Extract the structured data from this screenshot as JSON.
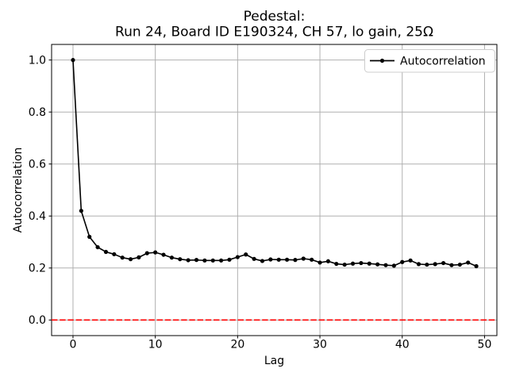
{
  "chart_data": {
    "type": "line",
    "title_lines": [
      "Pedestal:",
      "Run 24, Board ID E190324, CH 57, lo gain, 25Ω"
    ],
    "title": "Pedestal:\nRun 24, Board ID E190324, CH 57, lo gain, 25Ω",
    "xlabel": "Lag",
    "ylabel": "Autocorrelation",
    "grid": true,
    "legend": {
      "position": "upper right",
      "entries": [
        {
          "label": "Autocorrelation",
          "color": "#000000",
          "marker": "point"
        }
      ]
    },
    "xlim": [
      -2.6,
      51.5
    ],
    "ylim": [
      -0.06,
      1.06
    ],
    "xticks": {
      "values": [
        0,
        10,
        20,
        30,
        40,
        50
      ],
      "labels": [
        "0",
        "10",
        "20",
        "30",
        "40",
        "50"
      ]
    },
    "yticks": {
      "values": [
        0.0,
        0.2,
        0.4,
        0.6,
        0.8,
        1.0
      ],
      "labels": [
        "0.0",
        "0.2",
        "0.4",
        "0.6",
        "0.8",
        "1.0"
      ]
    },
    "series": [
      {
        "name": "Autocorrelation",
        "color": "#000000",
        "marker": "point",
        "line_width": 1.6,
        "x": [
          0,
          1,
          2,
          3,
          4,
          5,
          6,
          7,
          8,
          9,
          10,
          11,
          12,
          13,
          14,
          15,
          16,
          17,
          18,
          19,
          20,
          21,
          22,
          23,
          24,
          25,
          26,
          27,
          28,
          29,
          30,
          31,
          32,
          33,
          34,
          35,
          36,
          37,
          38,
          39,
          40,
          41,
          42,
          43,
          44,
          45,
          46,
          47,
          48,
          49
        ],
        "y": [
          1.0,
          0.42,
          0.32,
          0.28,
          0.262,
          0.253,
          0.24,
          0.234,
          0.241,
          0.257,
          0.26,
          0.251,
          0.24,
          0.234,
          0.23,
          0.231,
          0.229,
          0.229,
          0.229,
          0.232,
          0.242,
          0.252,
          0.235,
          0.227,
          0.233,
          0.232,
          0.232,
          0.231,
          0.236,
          0.232,
          0.221,
          0.226,
          0.216,
          0.213,
          0.217,
          0.219,
          0.217,
          0.214,
          0.211,
          0.209,
          0.223,
          0.229,
          0.215,
          0.213,
          0.215,
          0.219,
          0.211,
          0.213,
          0.221,
          0.207
        ]
      }
    ],
    "reference_lines": [
      {
        "axis": "y",
        "value": 0.0,
        "color": "#ff0000",
        "style": "dashed",
        "name": "zero-line"
      }
    ],
    "colors": {
      "background": "#ffffff",
      "grid": "#b0b0b0",
      "frame": "#000000",
      "series": "#000000",
      "zero_line": "#ff0000",
      "legend_border": "#cccccc"
    }
  }
}
